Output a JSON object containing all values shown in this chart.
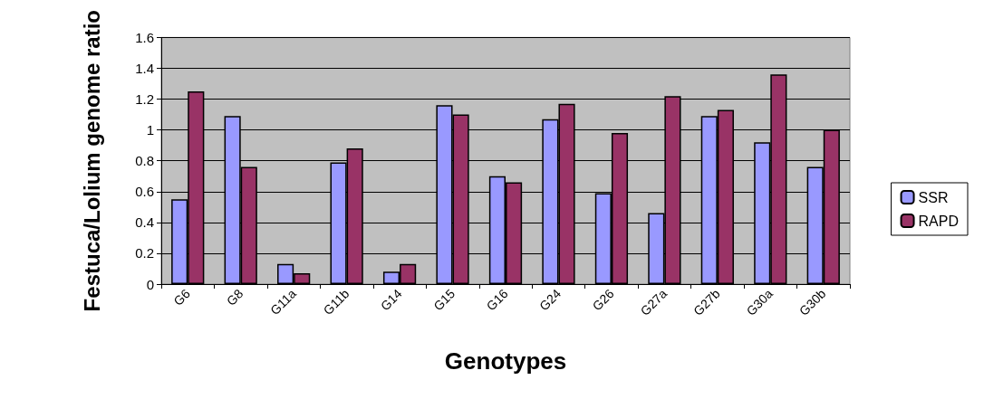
{
  "chart_data": {
    "type": "bar",
    "xlabel": "Genotypes",
    "ylabel": "Festuca/Lolium genome ratio",
    "categories": [
      "G6",
      "G8",
      "G11a",
      "G11b",
      "G14",
      "G15",
      "G16",
      "G24",
      "G26",
      "G27a",
      "G27b",
      "G30a",
      "G30b"
    ],
    "series": [
      {
        "name": "SSR",
        "color": "#9999ff",
        "values": [
          0.55,
          1.09,
          0.13,
          0.79,
          0.08,
          1.16,
          0.7,
          1.07,
          0.59,
          0.46,
          1.09,
          0.92,
          0.76
        ]
      },
      {
        "name": "RAPD",
        "color": "#993366",
        "values": [
          1.25,
          0.76,
          0.07,
          0.88,
          0.13,
          1.1,
          0.66,
          1.17,
          0.98,
          1.22,
          1.13,
          1.36,
          1.0
        ]
      }
    ],
    "ylim": [
      0,
      1.6
    ],
    "yticks": [
      0,
      0.2,
      0.4,
      0.6,
      0.8,
      1,
      1.2,
      1.4,
      1.6
    ],
    "grid": "y",
    "legend": "right"
  }
}
